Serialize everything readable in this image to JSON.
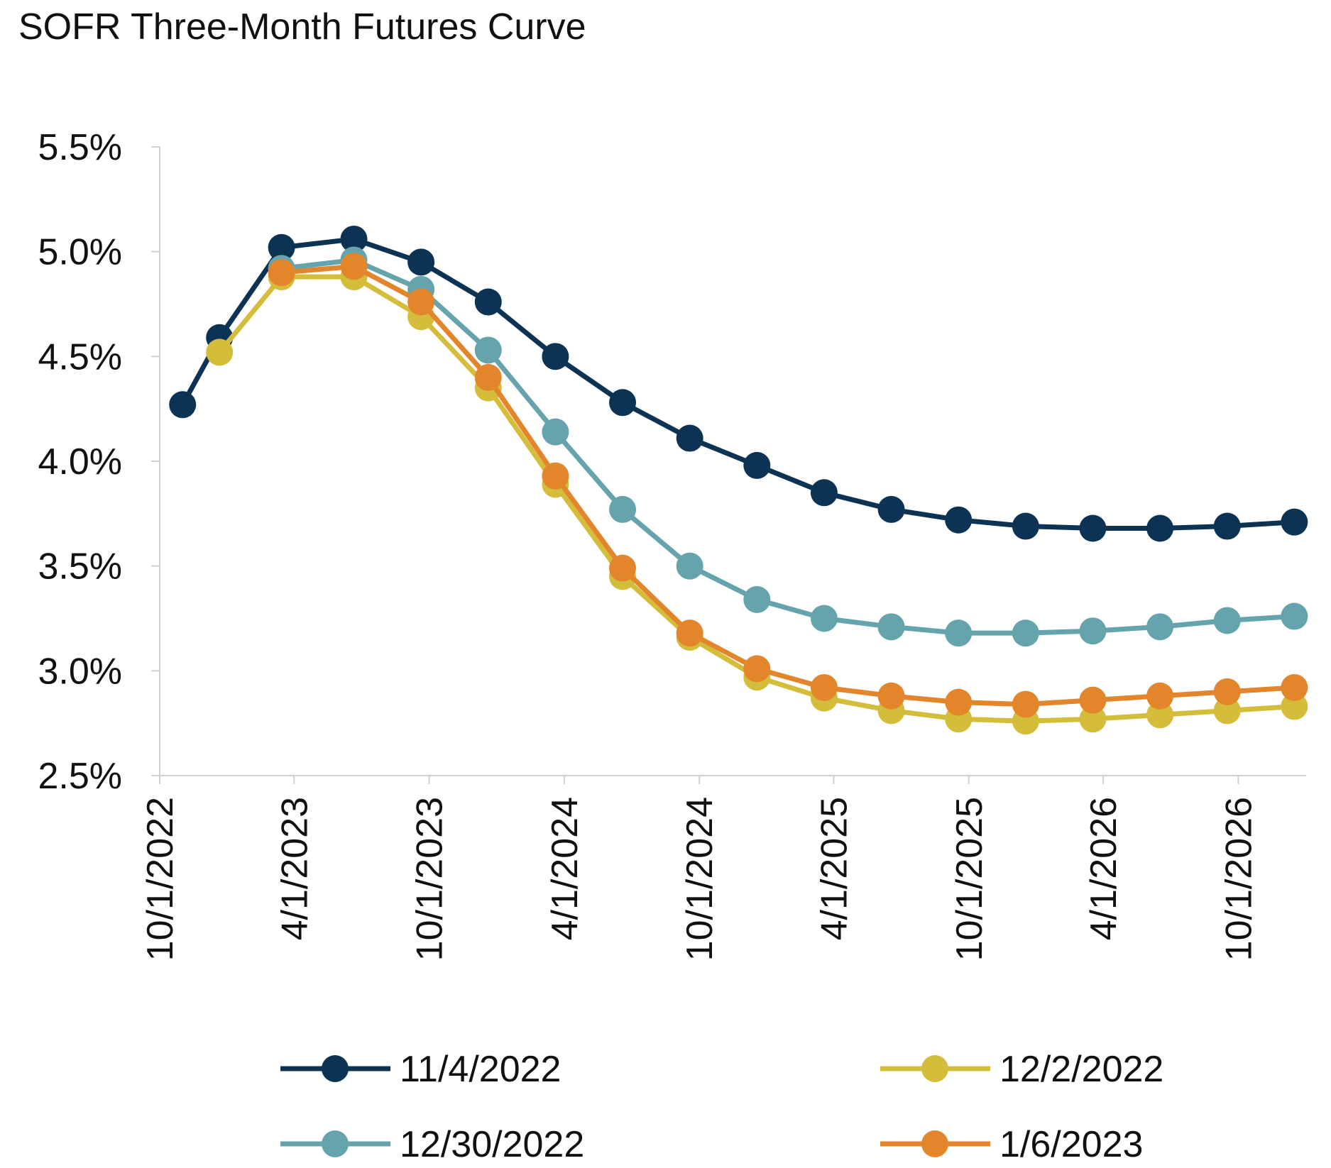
{
  "chart_data": {
    "type": "line",
    "title": "SOFR Three-Month Futures Curve",
    "xlabel": "",
    "ylabel": "",
    "ylim": [
      2.5,
      5.5
    ],
    "xlim": [
      "2022-10-01",
      "2027-01-01"
    ],
    "y_ticks": [
      "2.5%",
      "3.0%",
      "3.5%",
      "4.0%",
      "4.5%",
      "5.0%",
      "5.5%"
    ],
    "y_tick_values": [
      2.5,
      3.0,
      3.5,
      4.0,
      4.5,
      5.0,
      5.5
    ],
    "x_ticks": [
      "10/1/2022",
      "4/1/2023",
      "10/1/2023",
      "4/1/2024",
      "10/1/2024",
      "4/1/2025",
      "10/1/2025",
      "4/1/2026",
      "10/1/2026"
    ],
    "x_tick_dates": [
      "2022-10-01",
      "2023-04-01",
      "2023-10-01",
      "2024-04-01",
      "2024-10-01",
      "2025-04-01",
      "2025-10-01",
      "2026-04-01",
      "2026-10-01"
    ],
    "grid": false,
    "legend_position": "bottom",
    "series": [
      {
        "name": "11/4/2022",
        "color": "#0d3354",
        "x": [
          "2022-11-01",
          "2022-12-21",
          "2023-03-15",
          "2023-06-21",
          "2023-09-20",
          "2023-12-20",
          "2024-03-20",
          "2024-06-19",
          "2024-09-18",
          "2024-12-18",
          "2025-03-19",
          "2025-06-18",
          "2025-09-17",
          "2025-12-17",
          "2026-03-18",
          "2026-06-17",
          "2026-09-16",
          "2026-12-16"
        ],
        "values": [
          4.27,
          4.59,
          5.02,
          5.06,
          4.95,
          4.76,
          4.5,
          4.28,
          4.11,
          3.98,
          3.85,
          3.77,
          3.72,
          3.69,
          3.68,
          3.68,
          3.69,
          3.71
        ]
      },
      {
        "name": "12/2/2022",
        "color": "#d4bd3a",
        "x": [
          "2022-12-21",
          "2023-03-15",
          "2023-06-21",
          "2023-09-20",
          "2023-12-20",
          "2024-03-20",
          "2024-06-19",
          "2024-09-18",
          "2024-12-18",
          "2025-03-19",
          "2025-06-18",
          "2025-09-17",
          "2025-12-17",
          "2026-03-18",
          "2026-06-17",
          "2026-09-16",
          "2026-12-16"
        ],
        "values": [
          4.52,
          4.88,
          4.88,
          4.69,
          4.35,
          3.89,
          3.45,
          3.16,
          2.97,
          2.87,
          2.81,
          2.77,
          2.76,
          2.77,
          2.79,
          2.81,
          2.83
        ]
      },
      {
        "name": "12/30/2022",
        "color": "#65a4ad",
        "x": [
          "2023-03-15",
          "2023-06-21",
          "2023-09-20",
          "2023-12-20",
          "2024-03-20",
          "2024-06-19",
          "2024-09-18",
          "2024-12-18",
          "2025-03-19",
          "2025-06-18",
          "2025-09-17",
          "2025-12-17",
          "2026-03-18",
          "2026-06-17",
          "2026-09-16",
          "2026-12-16"
        ],
        "values": [
          4.92,
          4.96,
          4.82,
          4.53,
          4.14,
          3.77,
          3.5,
          3.34,
          3.25,
          3.21,
          3.18,
          3.18,
          3.19,
          3.21,
          3.24,
          3.26
        ]
      },
      {
        "name": "1/6/2023",
        "color": "#e3862b",
        "x": [
          "2023-03-15",
          "2023-06-21",
          "2023-09-20",
          "2023-12-20",
          "2024-03-20",
          "2024-06-19",
          "2024-09-18",
          "2024-12-18",
          "2025-03-19",
          "2025-06-18",
          "2025-09-17",
          "2025-12-17",
          "2026-03-18",
          "2026-06-17",
          "2026-09-16",
          "2026-12-16"
        ],
        "values": [
          4.9,
          4.93,
          4.76,
          4.4,
          3.93,
          3.49,
          3.18,
          3.01,
          2.92,
          2.88,
          2.85,
          2.84,
          2.86,
          2.88,
          2.9,
          2.92
        ]
      }
    ]
  }
}
